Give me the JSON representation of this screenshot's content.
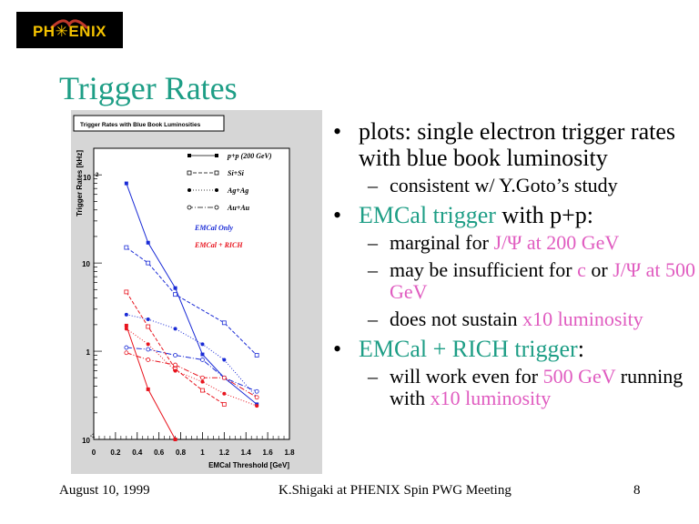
{
  "logo": {
    "text": "PH✳ENIX"
  },
  "slide": {
    "title": "Trigger Rates"
  },
  "chart_data": {
    "type": "line",
    "title": "Trigger Rates with Blue Book Luminosities",
    "xlabel": "EMCal Threshold [GeV]",
    "ylabel": "Trigger Rates [kHz]",
    "xlim": [
      0,
      1.8
    ],
    "ylim": [
      0.1,
      200
    ],
    "yscale": "log",
    "x_ticks": [
      "0",
      "0.2",
      "0.4",
      "0.6",
      "0.8",
      "1",
      "1.2",
      "1.4",
      "1.6",
      "1.8"
    ],
    "y_ticks": [
      "10",
      "1",
      "10"
    ],
    "y_tick_exps": [
      "2",
      "",
      "-1"
    ],
    "legend": [
      "p+p (200 GeV)",
      "Si+Si",
      "Ag+Ag",
      "Au+Au"
    ],
    "group_labels": [
      "EMCal Only",
      "EMCal + RICH"
    ],
    "colors": {
      "emcal": "#1a2bd6",
      "rich": "#e8141e"
    },
    "series": [
      {
        "group": "emcal",
        "marker": "filled-square",
        "dash": "",
        "x": [
          0.3,
          0.5,
          0.75,
          1.0,
          1.2,
          1.5
        ],
        "y": [
          80,
          17,
          5.2,
          0.92,
          0.5,
          0.25
        ]
      },
      {
        "group": "emcal",
        "marker": "open-square",
        "dash": "4,2",
        "x": [
          0.3,
          0.5,
          0.75,
          1.2,
          1.5
        ],
        "y": [
          15,
          10,
          4.4,
          2.1,
          0.9
        ]
      },
      {
        "group": "emcal",
        "marker": "filled-circle",
        "dash": "1,2",
        "x": [
          0.3,
          0.5,
          0.75,
          1.0,
          1.2,
          1.5
        ],
        "y": [
          2.6,
          2.3,
          1.8,
          1.2,
          0.8,
          0.3
        ]
      },
      {
        "group": "emcal",
        "marker": "open-circle",
        "dash": "6,2,1,2",
        "x": [
          0.3,
          0.5,
          0.75,
          1.0,
          1.2,
          1.5
        ],
        "y": [
          1.1,
          1.05,
          0.9,
          0.8,
          0.5,
          0.35
        ]
      },
      {
        "group": "rich",
        "marker": "filled-square",
        "dash": "",
        "x": [
          0.3,
          0.5,
          0.75
        ],
        "y": [
          1.95,
          0.37,
          0.1
        ]
      },
      {
        "group": "rich",
        "marker": "open-square",
        "dash": "4,2",
        "x": [
          0.3,
          0.5,
          0.75,
          1.0,
          1.2
        ],
        "y": [
          4.7,
          1.9,
          0.63,
          0.36,
          0.25
        ]
      },
      {
        "group": "rich",
        "marker": "filled-circle",
        "dash": "1,2",
        "x": [
          0.3,
          0.5,
          0.75,
          1.0,
          1.2,
          1.5
        ],
        "y": [
          1.8,
          1.2,
          0.6,
          0.45,
          0.33,
          0.24
        ]
      },
      {
        "group": "rich",
        "marker": "open-circle",
        "dash": "6,2,1,2",
        "x": [
          0.3,
          0.5,
          0.75,
          1.0,
          1.2,
          1.5
        ],
        "y": [
          0.96,
          0.8,
          0.7,
          0.5,
          0.5,
          0.3
        ]
      }
    ]
  },
  "bullets": [
    {
      "text": "plots: single electron trigger rates with blue book luminosity",
      "subs": [
        "consistent w/ Y.Goto’s study"
      ]
    },
    {
      "runs": [
        {
          "t": "EMCal trigger",
          "c": "teal"
        },
        {
          "t": " with p+p:",
          "c": ""
        }
      ],
      "subs_runs": [
        [
          {
            "t": "marginal for ",
            "c": ""
          },
          {
            "t": "J/Ψ at 200 GeV",
            "c": "pink"
          }
        ],
        [
          {
            "t": "may be insufficient for ",
            "c": ""
          },
          {
            "t": "c",
            "c": "pink"
          },
          {
            "t": " or ",
            "c": ""
          },
          {
            "t": "J/Ψ at 500 GeV",
            "c": "pink"
          }
        ],
        [
          {
            "t": "does not sustain ",
            "c": ""
          },
          {
            "t": "x10 luminosity",
            "c": "pink"
          }
        ]
      ]
    },
    {
      "runs": [
        {
          "t": "EMCal + RICH trigger",
          "c": "teal"
        },
        {
          "t": ":",
          "c": ""
        }
      ],
      "subs_runs": [
        [
          {
            "t": "will work even for ",
            "c": ""
          },
          {
            "t": "500 GeV",
            "c": "pink"
          },
          {
            "t": " running with ",
            "c": ""
          },
          {
            "t": "x10 luminosity",
            "c": "pink"
          }
        ]
      ]
    }
  ],
  "footer": {
    "date": "August 10, 1999",
    "center": "K.Shigaki at PHENIX Spin PWG Meeting",
    "page": "8"
  }
}
